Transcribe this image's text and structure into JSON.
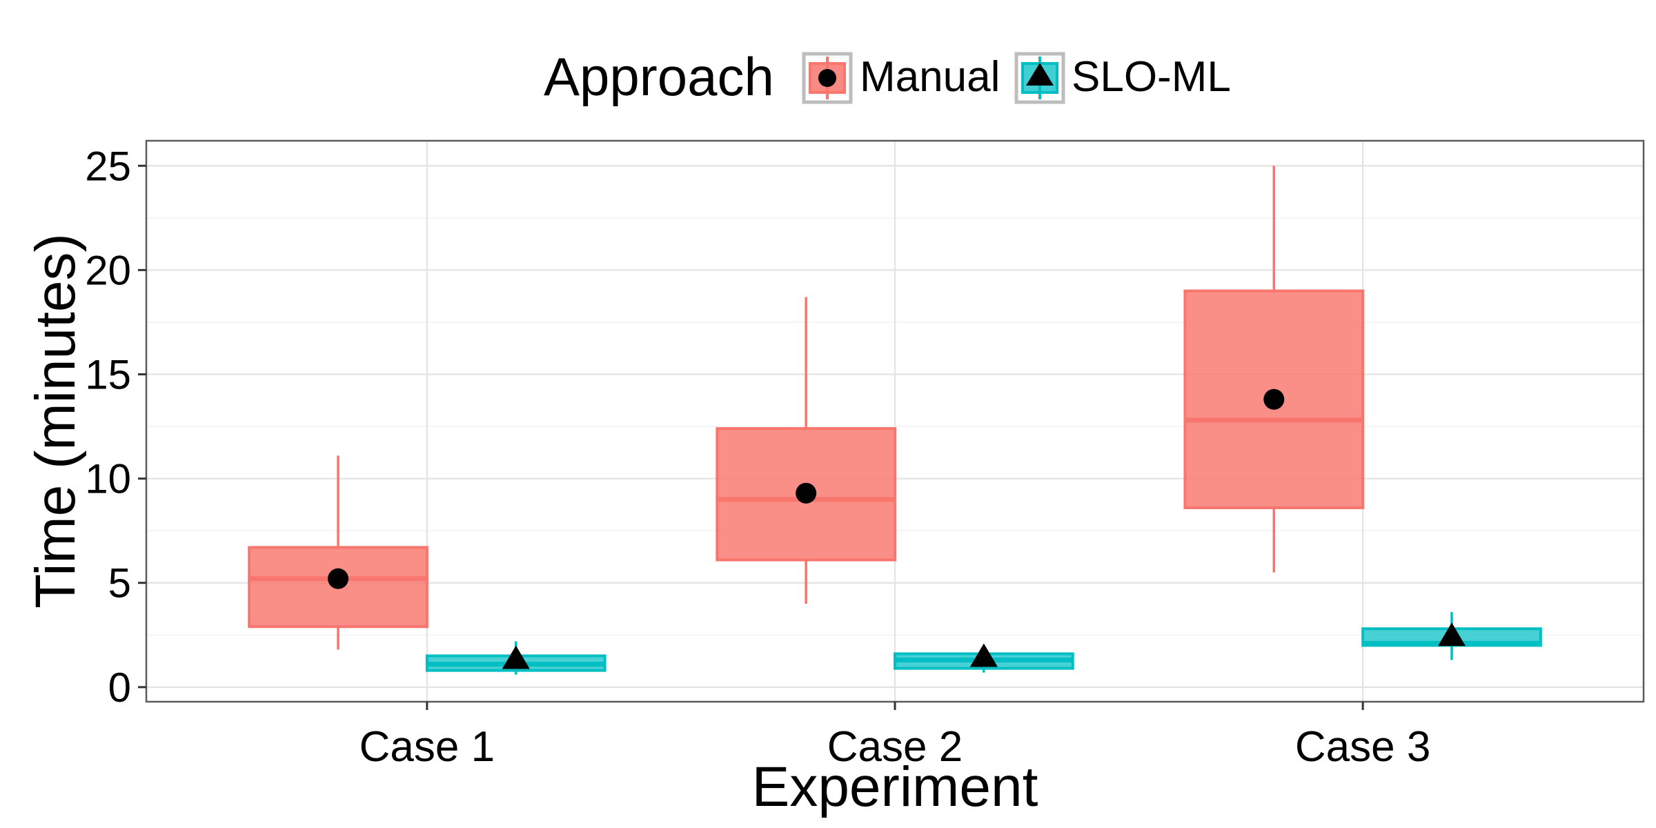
{
  "chart_data": {
    "type": "box",
    "title": "",
    "xlabel": "Experiment",
    "ylabel": "Time (minutes)",
    "ylim": [
      -0.7,
      26.2
    ],
    "yticks": [
      0,
      5,
      10,
      15,
      20,
      25
    ],
    "categories": [
      "Case 1",
      "Case 2",
      "Case 3"
    ],
    "grid": true,
    "legend": {
      "title": "Approach",
      "position": "top",
      "entries": [
        "Manual",
        "SLO-ML"
      ]
    },
    "series": [
      {
        "name": "Manual",
        "color": "#F8766D",
        "mean_marker": "circle",
        "boxes": [
          {
            "whisker_low": 1.8,
            "q1": 2.9,
            "median": 5.2,
            "q3": 6.7,
            "whisker_high": 11.1,
            "mean": 5.2
          },
          {
            "whisker_low": 4.0,
            "q1": 6.1,
            "median": 9.0,
            "q3": 12.4,
            "whisker_high": 18.7,
            "mean": 9.3
          },
          {
            "whisker_low": 5.5,
            "q1": 8.6,
            "median": 12.8,
            "q3": 19.0,
            "whisker_high": 25.0,
            "mean": 13.8
          }
        ]
      },
      {
        "name": "SLO-ML",
        "color": "#00BFC4",
        "mean_marker": "triangle",
        "boxes": [
          {
            "whisker_low": 0.6,
            "q1": 0.8,
            "median": 1.1,
            "q3": 1.5,
            "whisker_high": 2.2,
            "mean": 1.3
          },
          {
            "whisker_low": 0.7,
            "q1": 0.9,
            "median": 1.3,
            "q3": 1.6,
            "whisker_high": 2.0,
            "mean": 1.4
          },
          {
            "whisker_low": 1.3,
            "q1": 2.0,
            "median": 2.1,
            "q3": 2.8,
            "whisker_high": 3.6,
            "mean": 2.4
          }
        ]
      }
    ]
  }
}
